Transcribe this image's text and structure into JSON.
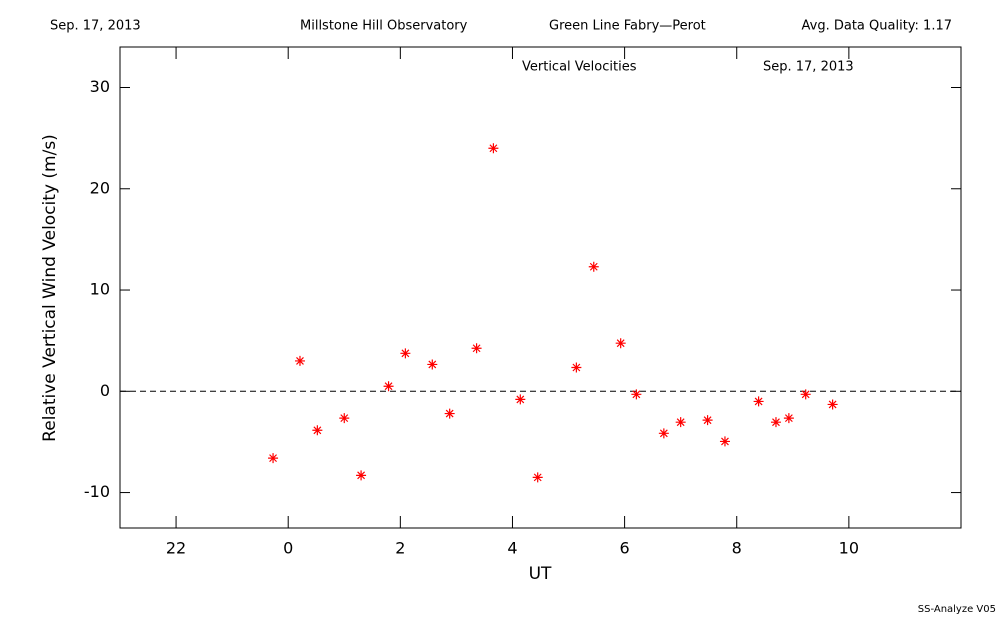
{
  "chart_data": {
    "type": "scatter",
    "header": [
      "Sep. 17, 2013",
      "Millstone Hill Observatory",
      "Green Line Fabry—Perot",
      "Avg. Data Quality: 1.17"
    ],
    "title": "Vertical Velocities",
    "subtitle": "Sep. 17, 2013",
    "x_label": "UT",
    "y_label": "Relative Vertical Wind Velocity (m/s)",
    "footer": "SS-Analyze V05",
    "xlim": [
      -3,
      12
    ],
    "xticks": [
      {
        "value": -2,
        "label": "22"
      },
      0,
      2,
      4,
      6,
      8,
      10
    ],
    "ylim": [
      -13.5,
      34
    ],
    "yticks": [
      -10,
      0,
      10,
      20,
      30
    ],
    "reference_line": 0,
    "series": [
      {
        "color": "#ff0000",
        "x": [
          -0.27,
          0.21,
          0.52,
          1.0,
          1.3,
          1.79,
          2.09,
          2.57,
          2.88,
          3.36,
          3.66,
          4.14,
          4.45,
          5.14,
          5.45,
          5.93,
          6.21,
          6.7,
          7.0,
          7.48,
          7.79,
          8.39,
          8.7,
          8.93,
          9.23,
          9.71
        ],
        "values": [
          -6.6,
          3.0,
          -3.85,
          -2.65,
          -8.3,
          0.5,
          3.75,
          2.65,
          -2.2,
          4.25,
          24.0,
          -0.8,
          -8.5,
          2.35,
          12.3,
          4.75,
          -0.3,
          -4.15,
          -3.05,
          -2.85,
          -4.95,
          -1.0,
          -3.05,
          -2.65,
          -0.3,
          -1.3
        ]
      }
    ]
  }
}
